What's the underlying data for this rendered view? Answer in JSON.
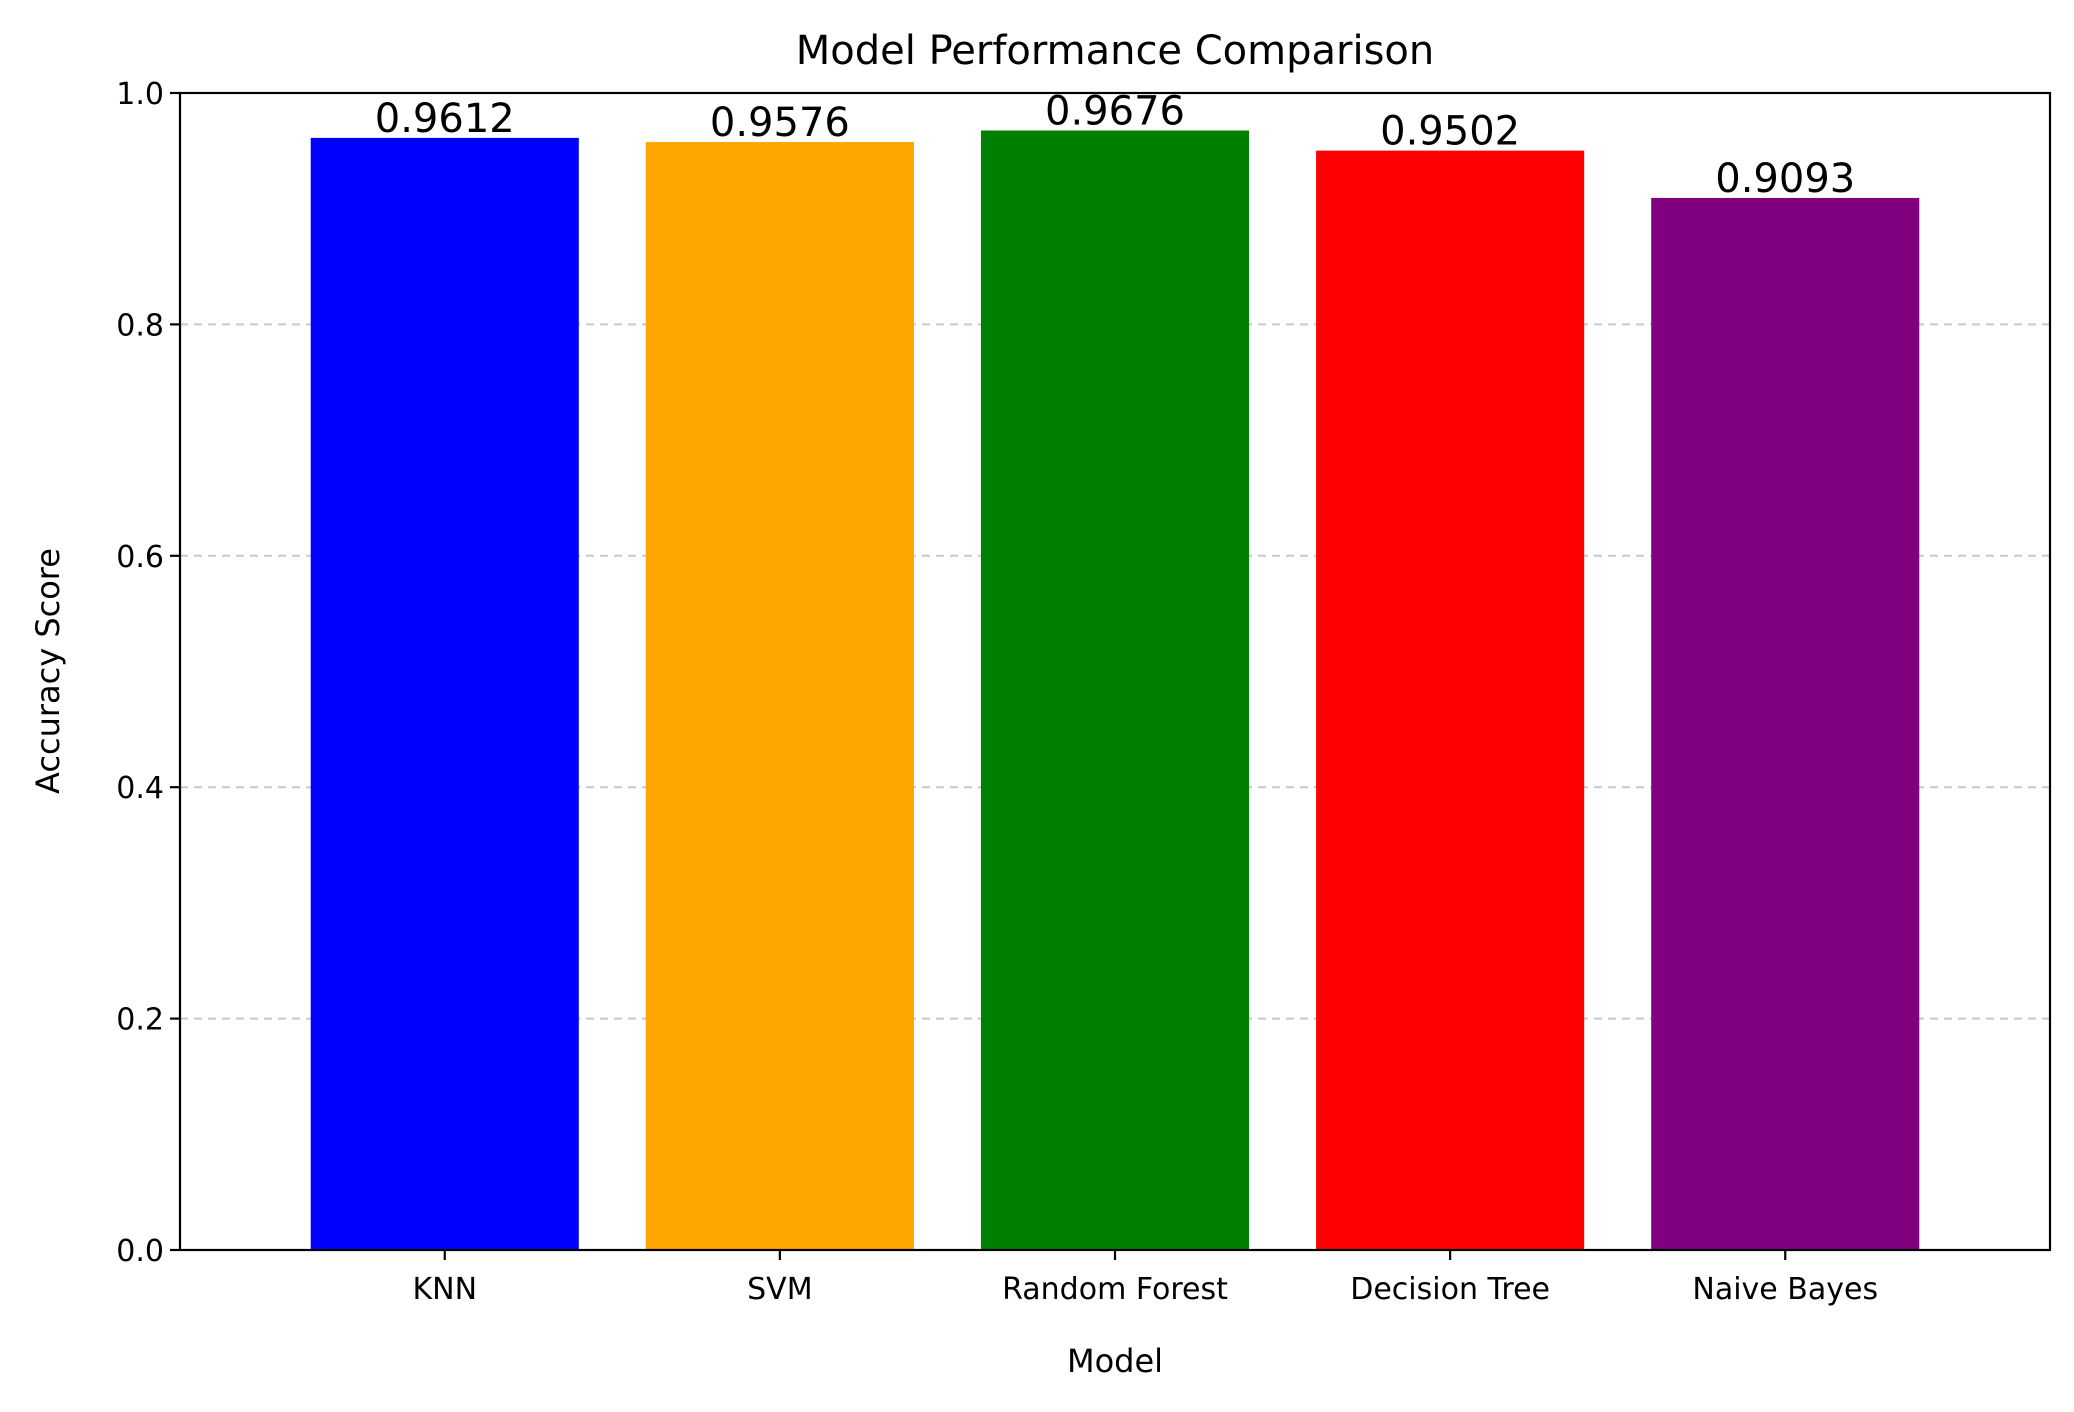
{
  "chart_data": {
    "type": "bar",
    "title": "Model Performance Comparison",
    "xlabel": "Model",
    "ylabel": "Accuracy Score",
    "categories": [
      "KNN",
      "SVM",
      "Random Forest",
      "Decision Tree",
      "Naive Bayes"
    ],
    "values": [
      0.9612,
      0.9576,
      0.9676,
      0.9502,
      0.9093
    ],
    "value_labels": [
      "0.9612",
      "0.9576",
      "0.9676",
      "0.9502",
      "0.9093"
    ],
    "colors": [
      "#0000ff",
      "#ffa500",
      "#008000",
      "#ff0000",
      "#800080"
    ],
    "ylim": [
      0,
      1.0
    ],
    "yticks": [
      0.0,
      0.2,
      0.4,
      0.6,
      0.8,
      1.0
    ],
    "ytick_labels": [
      "0.0",
      "0.2",
      "0.4",
      "0.6",
      "0.8",
      "1.0"
    ],
    "grid": "y-dashed",
    "legend": "none"
  }
}
